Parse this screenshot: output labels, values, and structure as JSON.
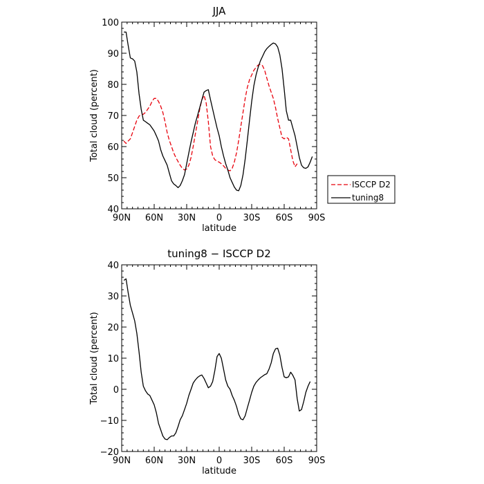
{
  "chart_data": [
    {
      "type": "line",
      "title": "JJA",
      "xlabel": "latitude",
      "ylabel": "Total cloud (percent)",
      "xlim": [
        90,
        -90
      ],
      "ylim": [
        40,
        100
      ],
      "xticks": [
        90,
        60,
        30,
        0,
        -30,
        -60,
        -90
      ],
      "xtick_labels": [
        "90N",
        "60N",
        "30N",
        "0",
        "30S",
        "60S",
        "90S"
      ],
      "yticks": [
        40,
        50,
        60,
        70,
        80,
        90,
        100
      ],
      "ytick_labels": [
        "40",
        "50",
        "60",
        "70",
        "80",
        "90",
        "100"
      ],
      "legend": "right, outside plot",
      "series": [
        {
          "name": "ISCCP D2",
          "color": "#e8000b",
          "dash": "dashed",
          "points": [
            [
              88,
              61.8
            ],
            [
              86,
              61.0
            ],
            [
              84,
              61.8
            ],
            [
              82,
              62.5
            ],
            [
              80,
              64.5
            ],
            [
              78,
              66.5
            ],
            [
              76,
              68.5
            ],
            [
              74,
              69.8
            ],
            [
              72,
              70.3
            ],
            [
              70,
              70.4
            ],
            [
              68,
              71.0
            ],
            [
              66,
              72.0
            ],
            [
              64,
              73.0
            ],
            [
              62,
              74.5
            ],
            [
              60,
              75.5
            ],
            [
              58,
              75.5
            ],
            [
              56,
              74.5
            ],
            [
              54,
              73.0
            ],
            [
              52,
              71.0
            ],
            [
              50,
              68.0
            ],
            [
              48,
              64.5
            ],
            [
              46,
              62.0
            ],
            [
              44,
              60.0
            ],
            [
              42,
              58.0
            ],
            [
              40,
              56.5
            ],
            [
              38,
              55.2
            ],
            [
              36,
              54.0
            ],
            [
              34,
              53.0
            ],
            [
              32,
              52.5
            ],
            [
              30,
              52.8
            ],
            [
              28,
              54.0
            ],
            [
              26,
              56.5
            ],
            [
              24,
              60.0
            ],
            [
              22,
              64.0
            ],
            [
              20,
              68.0
            ],
            [
              18,
              72.0
            ],
            [
              16,
              75.0
            ],
            [
              14,
              76.5
            ],
            [
              12,
              74.0
            ],
            [
              10,
              68.0
            ],
            [
              8,
              60.0
            ],
            [
              6,
              57.0
            ],
            [
              4,
              55.8
            ],
            [
              2,
              55.3
            ],
            [
              0,
              55.0
            ],
            [
              -2,
              54.5
            ],
            [
              -4,
              53.8
            ],
            [
              -6,
              53.0
            ],
            [
              -8,
              52.5
            ],
            [
              -10,
              52.2
            ],
            [
              -12,
              53.0
            ],
            [
              -14,
              55.0
            ],
            [
              -16,
              58.0
            ],
            [
              -18,
              62.0
            ],
            [
              -20,
              66.5
            ],
            [
              -22,
              71.0
            ],
            [
              -24,
              75.5
            ],
            [
              -26,
              79.0
            ],
            [
              -28,
              81.5
            ],
            [
              -30,
              83.0
            ],
            [
              -32,
              84.5
            ],
            [
              -34,
              85.5
            ],
            [
              -36,
              86.2
            ],
            [
              -38,
              86.5
            ],
            [
              -40,
              86.0
            ],
            [
              -42,
              84.5
            ],
            [
              -44,
              82.0
            ],
            [
              -46,
              79.5
            ],
            [
              -48,
              77.5
            ],
            [
              -50,
              75.5
            ],
            [
              -52,
              72.5
            ],
            [
              -54,
              69.0
            ],
            [
              -56,
              66.0
            ],
            [
              -58,
              63.0
            ],
            [
              -60,
              62.5
            ],
            [
              -62,
              63.0
            ],
            [
              -64,
              62.5
            ],
            [
              -66,
              59.0
            ],
            [
              -68,
              55.5
            ],
            [
              -70,
              53.5
            ],
            [
              -72,
              54.5
            ]
          ]
        },
        {
          "name": "tuning8",
          "color": "#000000",
          "dash": "solid",
          "points": [
            [
              88,
              96.8
            ],
            [
              86,
              96.8
            ],
            [
              84,
              92.5
            ],
            [
              82,
              88.5
            ],
            [
              80,
              88.2
            ],
            [
              78,
              87.5
            ],
            [
              76,
              84.0
            ],
            [
              74,
              77.0
            ],
            [
              72,
              72.0
            ],
            [
              70,
              68.5
            ],
            [
              68,
              68.0
            ],
            [
              66,
              67.5
            ],
            [
              64,
              67.0
            ],
            [
              62,
              66.0
            ],
            [
              60,
              65.0
            ],
            [
              58,
              63.5
            ],
            [
              56,
              61.8
            ],
            [
              54,
              59.0
            ],
            [
              52,
              57.0
            ],
            [
              50,
              55.5
            ],
            [
              48,
              54.0
            ],
            [
              46,
              51.5
            ],
            [
              44,
              49.0
            ],
            [
              42,
              48.0
            ],
            [
              40,
              47.5
            ],
            [
              38,
              46.8
            ],
            [
              36,
              47.5
            ],
            [
              34,
              49.0
            ],
            [
              32,
              51.0
            ],
            [
              30,
              54.5
            ],
            [
              28,
              58.0
            ],
            [
              26,
              61.5
            ],
            [
              24,
              64.5
            ],
            [
              22,
              67.5
            ],
            [
              20,
              70.0
            ],
            [
              18,
              72.5
            ],
            [
              16,
              75.0
            ],
            [
              14,
              77.5
            ],
            [
              12,
              78.0
            ],
            [
              10,
              78.3
            ],
            [
              8,
              75.0
            ],
            [
              6,
              72.0
            ],
            [
              4,
              69.0
            ],
            [
              2,
              66.0
            ],
            [
              0,
              63.5
            ],
            [
              -2,
              60.0
            ],
            [
              -4,
              57.0
            ],
            [
              -6,
              54.5
            ],
            [
              -8,
              52.5
            ],
            [
              -10,
              50.0
            ],
            [
              -12,
              48.5
            ],
            [
              -14,
              47.0
            ],
            [
              -16,
              46.0
            ],
            [
              -18,
              45.8
            ],
            [
              -20,
              47.5
            ],
            [
              -22,
              51.0
            ],
            [
              -24,
              56.0
            ],
            [
              -26,
              62.0
            ],
            [
              -28,
              68.5
            ],
            [
              -30,
              74.5
            ],
            [
              -32,
              79.5
            ],
            [
              -34,
              83.0
            ],
            [
              -36,
              85.5
            ],
            [
              -38,
              87.5
            ],
            [
              -40,
              89.0
            ],
            [
              -42,
              90.5
            ],
            [
              -44,
              91.5
            ],
            [
              -46,
              92.2
            ],
            [
              -48,
              92.8
            ],
            [
              -50,
              93.3
            ],
            [
              -52,
              93.0
            ],
            [
              -54,
              92.0
            ],
            [
              -56,
              89.5
            ],
            [
              -58,
              85.0
            ],
            [
              -60,
              78.5
            ],
            [
              -62,
              71.5
            ],
            [
              -64,
              68.5
            ],
            [
              -66,
              68.5
            ],
            [
              -68,
              66.0
            ],
            [
              -70,
              63.5
            ],
            [
              -72,
              60.0
            ],
            [
              -74,
              56.5
            ],
            [
              -76,
              54.0
            ],
            [
              -78,
              53.2
            ],
            [
              -80,
              53.0
            ],
            [
              -82,
              53.5
            ],
            [
              -84,
              55.0
            ],
            [
              -86,
              56.8
            ]
          ]
        }
      ]
    },
    {
      "type": "line",
      "title": "tuning8 − ISCCP D2",
      "xlabel": "latitude",
      "ylabel": "Total cloud (percent)",
      "xlim": [
        90,
        -90
      ],
      "ylim": [
        -20,
        40
      ],
      "xticks": [
        90,
        60,
        30,
        0,
        -30,
        -60,
        -90
      ],
      "xtick_labels": [
        "90N",
        "60N",
        "30N",
        "0",
        "30S",
        "60S",
        "90S"
      ],
      "yticks": [
        -20,
        -10,
        0,
        10,
        20,
        30,
        40
      ],
      "ytick_labels": [
        "−20",
        "−10",
        "0",
        "10",
        "20",
        "30",
        "40"
      ],
      "series": [
        {
          "color": "#000000",
          "dash": "solid",
          "points": [
            [
              88,
              35.0
            ],
            [
              86,
              35.5
            ],
            [
              84,
              31.0
            ],
            [
              82,
              27.0
            ],
            [
              80,
              24.5
            ],
            [
              78,
              22.0
            ],
            [
              76,
              18.0
            ],
            [
              74,
              12.0
            ],
            [
              72,
              5.5
            ],
            [
              70,
              1.0
            ],
            [
              68,
              -0.5
            ],
            [
              66,
              -1.5
            ],
            [
              64,
              -2.0
            ],
            [
              62,
              -3.5
            ],
            [
              60,
              -5.0
            ],
            [
              58,
              -7.5
            ],
            [
              56,
              -11.0
            ],
            [
              54,
              -13.0
            ],
            [
              52,
              -15.0
            ],
            [
              50,
              -16.0
            ],
            [
              48,
              -16.2
            ],
            [
              46,
              -15.5
            ],
            [
              44,
              -15.0
            ],
            [
              42,
              -15.0
            ],
            [
              40,
              -14.0
            ],
            [
              38,
              -12.0
            ],
            [
              36,
              -9.8
            ],
            [
              34,
              -8.5
            ],
            [
              32,
              -6.5
            ],
            [
              30,
              -4.5
            ],
            [
              28,
              -2.0
            ],
            [
              26,
              0.0
            ],
            [
              24,
              2.0
            ],
            [
              22,
              3.0
            ],
            [
              20,
              3.8
            ],
            [
              18,
              4.3
            ],
            [
              16,
              4.6
            ],
            [
              14,
              3.5
            ],
            [
              12,
              2.0
            ],
            [
              10,
              0.5
            ],
            [
              8,
              1.0
            ],
            [
              6,
              2.5
            ],
            [
              4,
              6.0
            ],
            [
              2,
              10.5
            ],
            [
              0,
              11.5
            ],
            [
              -2,
              10.0
            ],
            [
              -4,
              6.5
            ],
            [
              -6,
              3.0
            ],
            [
              -8,
              1.0
            ],
            [
              -10,
              0.0
            ],
            [
              -12,
              -2.0
            ],
            [
              -14,
              -3.5
            ],
            [
              -16,
              -5.5
            ],
            [
              -18,
              -8.0
            ],
            [
              -20,
              -9.5
            ],
            [
              -22,
              -9.8
            ],
            [
              -24,
              -8.5
            ],
            [
              -26,
              -6.0
            ],
            [
              -28,
              -3.5
            ],
            [
              -30,
              -1.0
            ],
            [
              -32,
              1.0
            ],
            [
              -34,
              2.2
            ],
            [
              -36,
              3.0
            ],
            [
              -38,
              3.7
            ],
            [
              -40,
              4.2
            ],
            [
              -42,
              4.7
            ],
            [
              -44,
              5.0
            ],
            [
              -46,
              6.5
            ],
            [
              -48,
              8.5
            ],
            [
              -50,
              11.5
            ],
            [
              -52,
              13.0
            ],
            [
              -54,
              13.2
            ],
            [
              -56,
              11.0
            ],
            [
              -58,
              7.0
            ],
            [
              -60,
              4.0
            ],
            [
              -62,
              3.7
            ],
            [
              -64,
              4.0
            ],
            [
              -66,
              5.5
            ],
            [
              -68,
              4.5
            ],
            [
              -70,
              3.0
            ],
            [
              -72,
              -3.0
            ],
            [
              -74,
              -7.0
            ],
            [
              -76,
              -6.5
            ],
            [
              -78,
              -4.0
            ],
            [
              -80,
              -1.0
            ],
            [
              -82,
              1.0
            ],
            [
              -84,
              2.5
            ]
          ]
        }
      ]
    }
  ]
}
